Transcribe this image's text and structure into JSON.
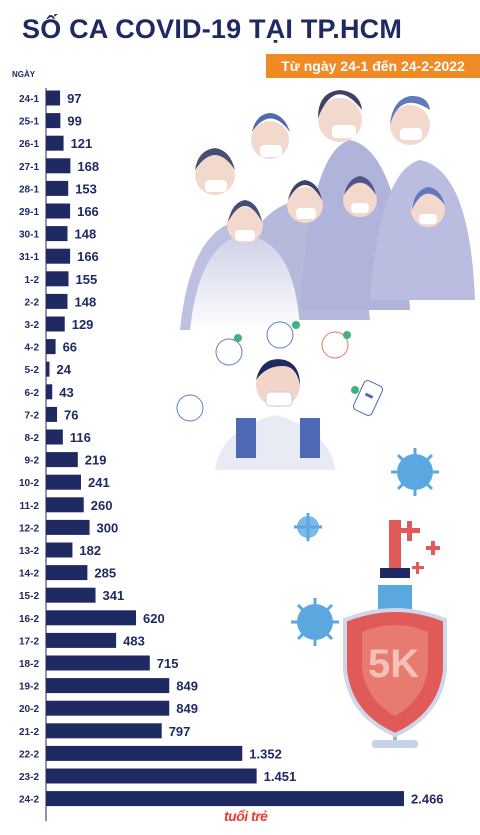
{
  "header": {
    "title": "SỐ CA COVID-19 TẠI TP.HCM",
    "subtitle": "Từ ngày 24-1 đến 24-2-2022",
    "axis_title": "NGÀY"
  },
  "colors": {
    "bar": "#1f2a63",
    "accent": "#f08a24",
    "virus": "#5ba8e0",
    "shield": "#e05b57"
  },
  "illustration": {
    "icons": [
      "people-with-masks-icon",
      "doctor-icon",
      "virus-icon",
      "vaccine-syringe-icon",
      "shield-icon",
      "phone-health-icon",
      "check-icon"
    ],
    "shield_label": "5K"
  },
  "logo": "tuổi trẻ",
  "chart_data": {
    "type": "bar",
    "orientation": "horizontal",
    "categories": [
      "24-1",
      "25-1",
      "26-1",
      "27-1",
      "28-1",
      "29-1",
      "30-1",
      "31-1",
      "1-2",
      "2-2",
      "3-2",
      "4-2",
      "5-2",
      "6-2",
      "7-2",
      "8-2",
      "9-2",
      "10-2",
      "11-2",
      "12-2",
      "13-2",
      "14-2",
      "15-2",
      "16-2",
      "17-2",
      "18-2",
      "19-2",
      "20-2",
      "21-2",
      "22-2",
      "23-2",
      "24-2"
    ],
    "values": [
      97,
      99,
      121,
      168,
      153,
      166,
      148,
      166,
      155,
      148,
      129,
      66,
      24,
      43,
      76,
      116,
      219,
      241,
      260,
      300,
      182,
      285,
      341,
      620,
      483,
      715,
      849,
      849,
      797,
      1352,
      1451,
      2466
    ],
    "labels": [
      "97",
      "99",
      "121",
      "168",
      "153",
      "166",
      "148",
      "166",
      "155",
      "148",
      "129",
      "66",
      "24",
      "43",
      "76",
      "116",
      "219",
      "241",
      "260",
      "300",
      "182",
      "285",
      "341",
      "620",
      "483",
      "715",
      "849",
      "849",
      "797",
      "1.352",
      "1.451",
      "2.466"
    ],
    "title": "SỐ CA COVID-19 TẠI TP.HCM",
    "ylabel": "NGÀY",
    "xlim": [
      0,
      2466
    ],
    "grid": false,
    "legend": "none"
  }
}
